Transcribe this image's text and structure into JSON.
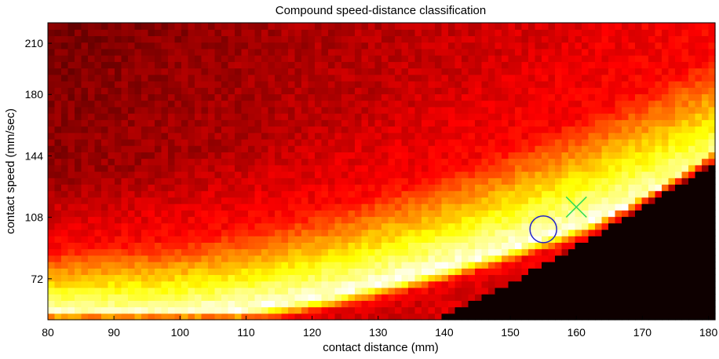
{
  "chart_data": {
    "type": "heatmap",
    "title": "Compound speed-distance classification",
    "xlabel": "contact distance (mm)",
    "ylabel": "contact speed (mm/sec)",
    "xlim": [
      80,
      181
    ],
    "ylim": [
      48,
      222
    ],
    "x_ticks": [
      80,
      90,
      100,
      110,
      120,
      130,
      140,
      150,
      160,
      170,
      180
    ],
    "y_ticks": [
      72,
      108,
      144,
      180,
      210
    ],
    "colormap": "hot",
    "grid": false,
    "legend": "none",
    "markers": [
      {
        "shape": "circle",
        "x": 155,
        "y": 101,
        "color": "#2222cc"
      },
      {
        "shape": "x",
        "x": 160,
        "y": 114,
        "color": "#33dd55"
      }
    ]
  }
}
